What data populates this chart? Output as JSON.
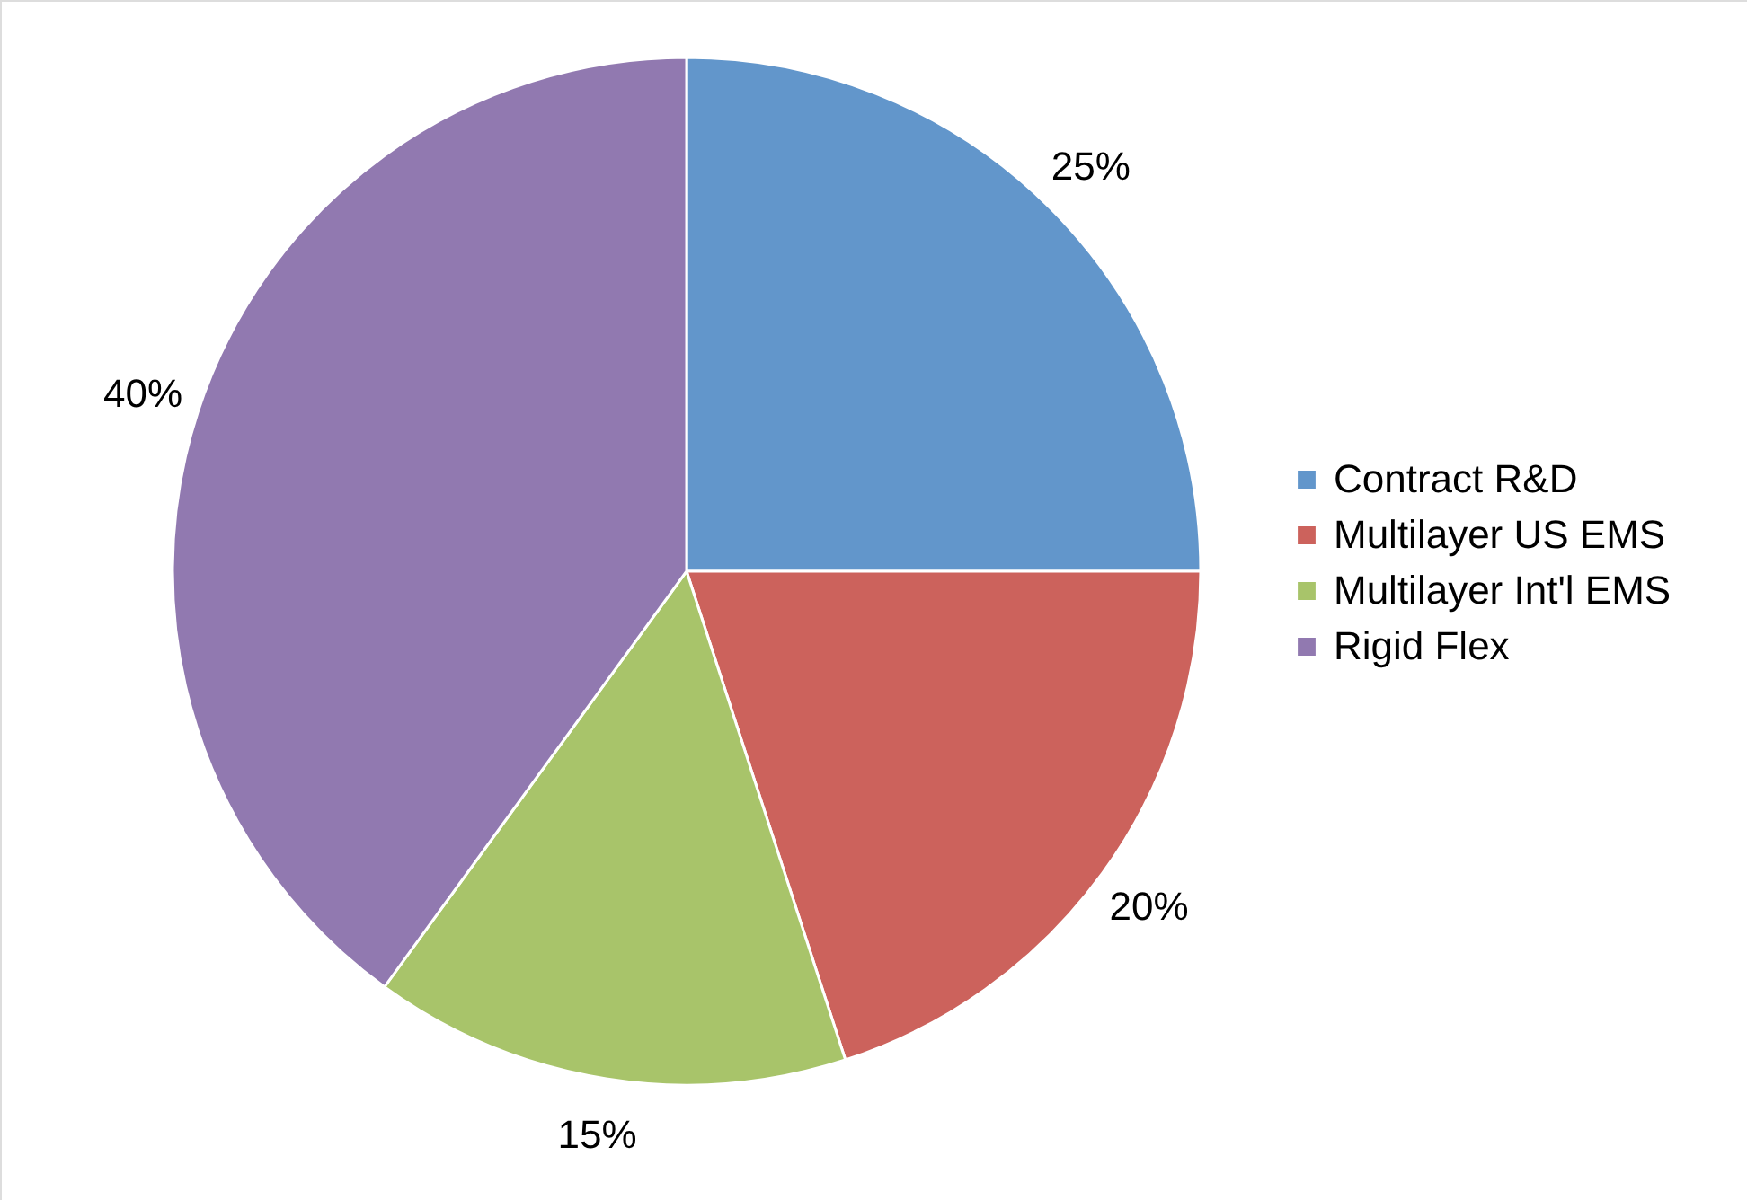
{
  "chart_data": {
    "type": "pie",
    "categories": [
      "Contract R&D",
      "Multilayer US EMS",
      "Multilayer Int'l EMS",
      "Rigid Flex"
    ],
    "values": [
      25,
      20,
      15,
      40
    ],
    "value_labels": [
      "25%",
      "20%",
      "15%",
      "40%"
    ],
    "colors": [
      "#6296cb",
      "#cc625c",
      "#a8c46a",
      "#9179b0"
    ],
    "legend": "right"
  }
}
